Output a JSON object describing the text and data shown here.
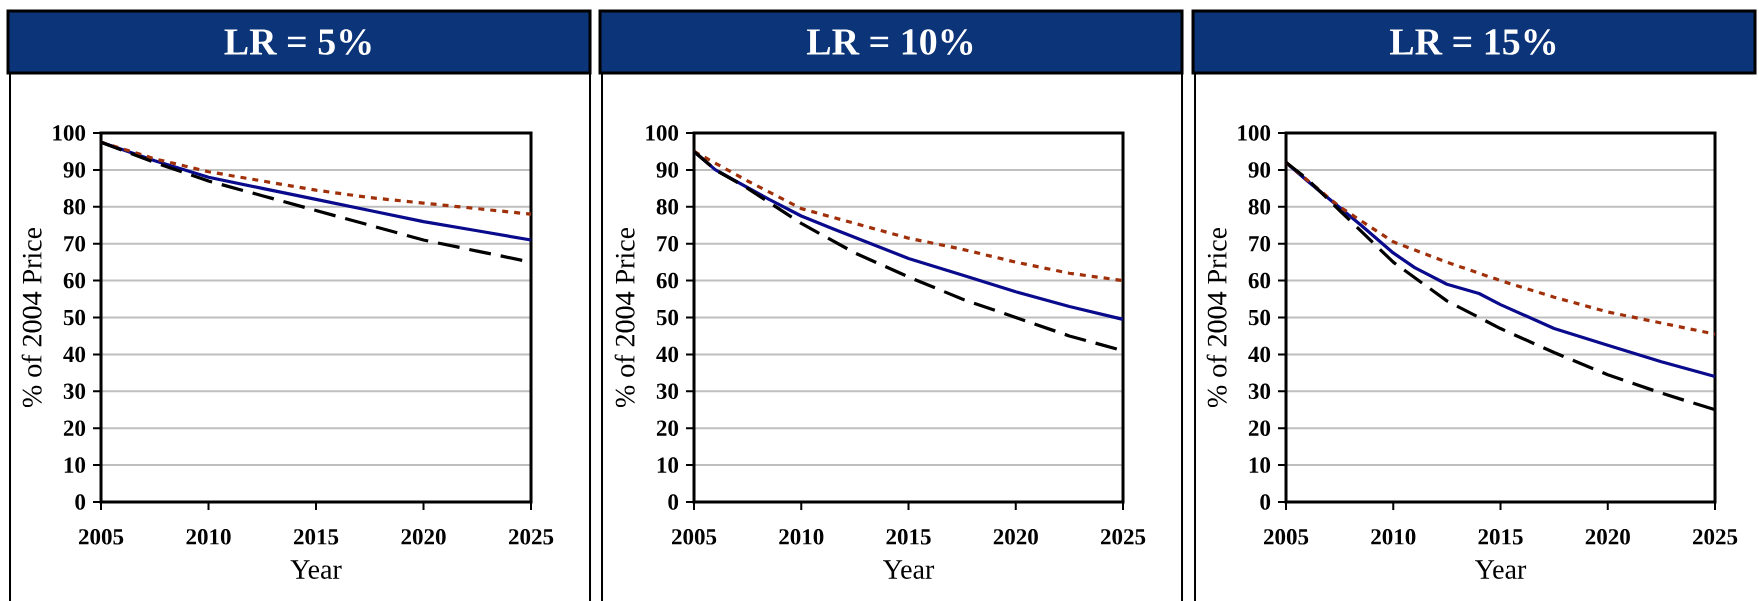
{
  "chart_data": [
    {
      "type": "line",
      "title": "LR = 5%",
      "xlabel": "Year",
      "ylabel": "% of 2004 Price",
      "xlim": [
        2005,
        2025
      ],
      "ylim": [
        0,
        100
      ],
      "xticks": [
        2005,
        2010,
        2015,
        2020,
        2025
      ],
      "yticks": [
        0,
        10,
        20,
        30,
        40,
        50,
        60,
        70,
        80,
        90,
        100
      ],
      "grid": "y",
      "series": [
        {
          "color": "#0a0a8c",
          "line_style": "solid",
          "x": [
            2005,
            2007.5,
            2010,
            2012.5,
            2015,
            2017.5,
            2020,
            2022.5,
            2025
          ],
          "values": [
            97.5,
            92.5,
            88,
            85,
            82,
            79,
            76,
            73.5,
            71
          ]
        },
        {
          "color": "#a0300a",
          "line_style": "dotted",
          "x": [
            2005,
            2007.5,
            2010,
            2012.5,
            2015,
            2017.5,
            2020,
            2022.5,
            2025
          ],
          "values": [
            97.5,
            93,
            89.5,
            87,
            84.5,
            82.5,
            81,
            79.5,
            78
          ]
        },
        {
          "color": "#000000",
          "line_style": "dashed",
          "x": [
            2005,
            2007.5,
            2010,
            2012.5,
            2015,
            2017.5,
            2020,
            2022.5,
            2025
          ],
          "values": [
            97.5,
            92,
            87,
            83,
            79,
            75,
            71,
            68,
            65
          ]
        }
      ]
    },
    {
      "type": "line",
      "title": "LR = 10%",
      "xlabel": "Year",
      "ylabel": "% of 2004 Price",
      "xlim": [
        2005,
        2025
      ],
      "ylim": [
        0,
        100
      ],
      "xticks": [
        2005,
        2010,
        2015,
        2020,
        2025
      ],
      "yticks": [
        0,
        10,
        20,
        30,
        40,
        50,
        60,
        70,
        80,
        90,
        100
      ],
      "grid": "y",
      "series": [
        {
          "color": "#0a0a8c",
          "line_style": "solid",
          "x": [
            2005,
            2006,
            2008.5,
            2010,
            2011.5,
            2015,
            2017.5,
            2020,
            2022.5,
            2025
          ],
          "values": [
            95,
            90,
            82,
            77.5,
            74,
            66,
            61.5,
            57,
            53,
            49.5
          ]
        },
        {
          "color": "#a0300a",
          "line_style": "dotted",
          "x": [
            2005,
            2007.5,
            2010,
            2012.5,
            2015,
            2017.5,
            2020,
            2022.5,
            2025
          ],
          "values": [
            95,
            87,
            79.5,
            75.5,
            71.5,
            68.5,
            65,
            62,
            60
          ]
        },
        {
          "color": "#000000",
          "line_style": "dashed",
          "x": [
            2005,
            2006,
            2007.5,
            2010,
            2012.5,
            2015,
            2017.5,
            2020,
            2022.5,
            2025
          ],
          "values": [
            95,
            90,
            85,
            75.5,
            67.5,
            61,
            55,
            50,
            45,
            41
          ]
        }
      ]
    },
    {
      "type": "line",
      "title": "LR = 15%",
      "xlabel": "Year",
      "ylabel": "% of 2004 Price",
      "xlim": [
        2005,
        2025
      ],
      "ylim": [
        0,
        100
      ],
      "xticks": [
        2005,
        2010,
        2015,
        2020,
        2025
      ],
      "yticks": [
        0,
        10,
        20,
        30,
        40,
        50,
        60,
        70,
        80,
        90,
        100
      ],
      "grid": "y",
      "series": [
        {
          "color": "#0a0a8c",
          "line_style": "solid",
          "x": [
            2005,
            2006,
            2008.5,
            2010,
            2011,
            2012.5,
            2014,
            2015,
            2017.5,
            2020,
            2022.5,
            2025
          ],
          "values": [
            92,
            87,
            75,
            67.5,
            63.5,
            59,
            56.5,
            53.5,
            47,
            42.5,
            38,
            34
          ]
        },
        {
          "color": "#a0300a",
          "line_style": "dotted",
          "x": [
            2005,
            2007.5,
            2010,
            2012.5,
            2015,
            2017.5,
            2020,
            2022.5,
            2025
          ],
          "values": [
            92,
            80,
            70.5,
            65,
            60,
            55.5,
            51.5,
            48.5,
            45.5
          ]
        },
        {
          "color": "#000000",
          "line_style": "dashed",
          "x": [
            2005,
            2006,
            2007.5,
            2010,
            2012.5,
            2015,
            2017.5,
            2020,
            2022.5,
            2025
          ],
          "values": [
            92,
            87.5,
            79,
            65,
            54.5,
            47,
            40.5,
            34.5,
            29.5,
            25
          ]
        }
      ]
    }
  ]
}
